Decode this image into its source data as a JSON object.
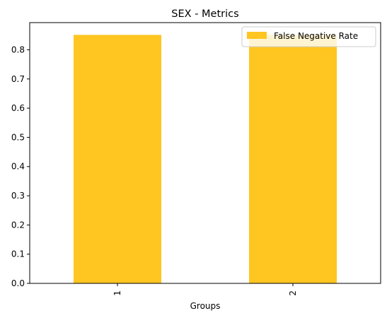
{
  "chart_data": {
    "type": "bar",
    "title": "SEX - Metrics",
    "xlabel": "Groups",
    "ylabel": "",
    "categories": [
      "1",
      "2"
    ],
    "series": [
      {
        "name": "False Negative Rate",
        "values": [
          0.851,
          0.851
        ],
        "color": "#ffc520"
      }
    ],
    "ylim": [
      0,
      0.893
    ],
    "yticks": [
      "0.0",
      "0.1",
      "0.2",
      "0.3",
      "0.4",
      "0.5",
      "0.6",
      "0.7",
      "0.8"
    ],
    "ytick_values": [
      0,
      0.1,
      0.2,
      0.3,
      0.4,
      0.5,
      0.6,
      0.7,
      0.8
    ],
    "grid": false,
    "legend_position": "top-right"
  }
}
